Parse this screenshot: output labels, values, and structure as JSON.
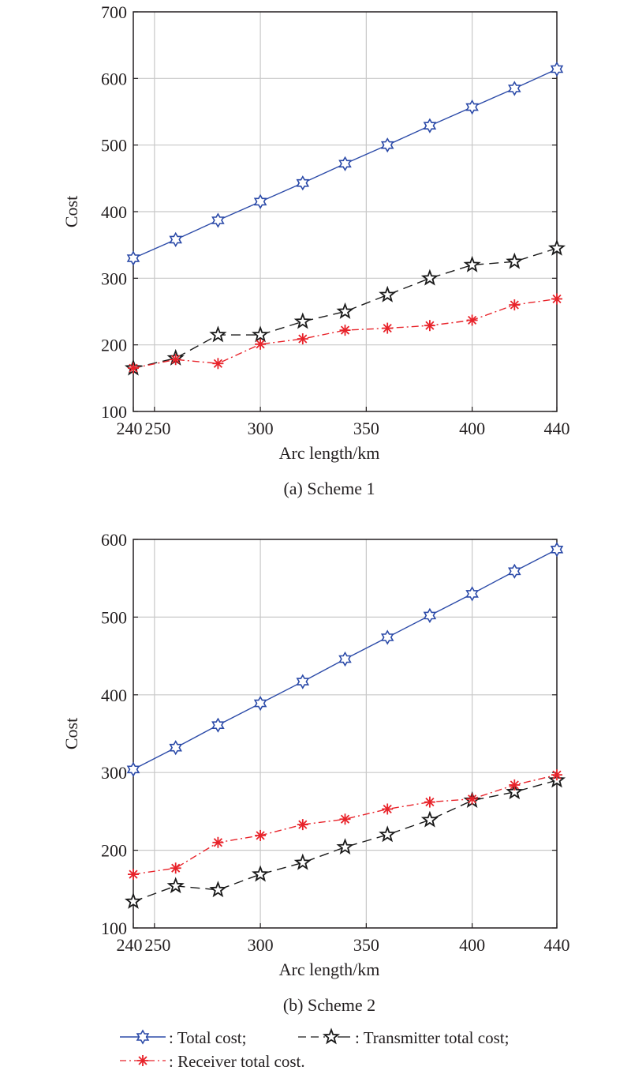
{
  "colors": {
    "total": "#2b4aa8",
    "transmitter": "#1a1a1a",
    "receiver": "#e8232a",
    "grid": "#c8c8c8"
  },
  "legend": {
    "total": ": Total cost;",
    "transmitter": ": Transmitter total cost;",
    "receiver": ": Receiver total cost.",
    "dash_prefix": "–",
    "dash_suffix": "–"
  },
  "chart_data": [
    {
      "type": "line",
      "title": "(a) Scheme 1",
      "xlabel": "Arc length/km",
      "ylabel": "Cost",
      "xlim": [
        240,
        440
      ],
      "ylim": [
        100,
        700
      ],
      "xticks": [
        240,
        250,
        300,
        350,
        400,
        440
      ],
      "yticks": [
        100,
        200,
        300,
        400,
        500,
        600,
        700
      ],
      "grid": true,
      "x": [
        240,
        260,
        280,
        300,
        320,
        340,
        360,
        380,
        400,
        420,
        440
      ],
      "series": [
        {
          "key": "total",
          "marker": "hexagram",
          "values": [
            330,
            358,
            387,
            415,
            443,
            472,
            500,
            529,
            557,
            585,
            614
          ]
        },
        {
          "key": "transmitter",
          "marker": "pentagram",
          "values": [
            165,
            180,
            215,
            215,
            235,
            250,
            275,
            300,
            320,
            325,
            345
          ]
        },
        {
          "key": "receiver",
          "marker": "asterisk",
          "values": [
            165,
            178,
            172,
            201,
            209,
            222,
            225,
            229,
            237,
            260,
            269
          ]
        }
      ]
    },
    {
      "type": "line",
      "title": "(b) Scheme 2",
      "xlabel": "Arc length/km",
      "ylabel": "Cost",
      "xlim": [
        240,
        440
      ],
      "ylim": [
        100,
        600
      ],
      "xticks": [
        240,
        250,
        300,
        350,
        400,
        440
      ],
      "yticks": [
        100,
        200,
        300,
        400,
        500,
        600
      ],
      "grid": true,
      "x": [
        240,
        260,
        280,
        300,
        320,
        340,
        360,
        380,
        400,
        420,
        440
      ],
      "series": [
        {
          "key": "total",
          "marker": "hexagram",
          "values": [
            304,
            332,
            361,
            389,
            417,
            446,
            474,
            502,
            530,
            559,
            587
          ]
        },
        {
          "key": "transmitter",
          "marker": "pentagram",
          "values": [
            134,
            154,
            149,
            169,
            184,
            204,
            220,
            239,
            264,
            275,
            290
          ]
        },
        {
          "key": "receiver",
          "marker": "asterisk",
          "values": [
            169,
            177,
            210,
            219,
            233,
            240,
            253,
            262,
            266,
            284,
            297
          ]
        }
      ]
    }
  ]
}
